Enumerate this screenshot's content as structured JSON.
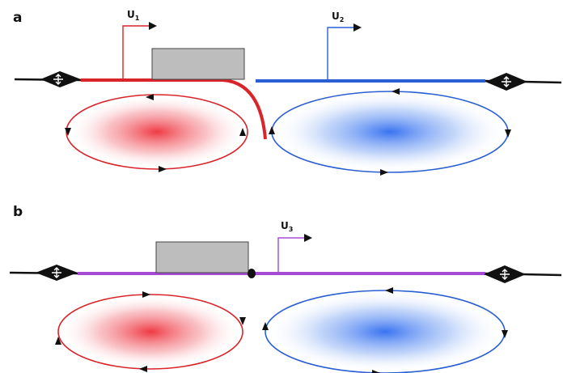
{
  "panels": [
    {
      "label": "a",
      "velocity_arrows": [
        {
          "label": "U",
          "subscript": "1",
          "color": "#d9242a"
        },
        {
          "label": "U",
          "subscript": "2",
          "color": "#2a5fd3"
        }
      ]
    },
    {
      "label": "b",
      "velocity_arrows": [
        {
          "label": "U",
          "subscript": "3",
          "color": "#a64bd6"
        }
      ]
    }
  ],
  "colors": {
    "red": "#d9242a",
    "blue": "#2a5fd3",
    "purple": "#a64bd6",
    "block": "#bdbdbd",
    "line": "#111111"
  }
}
